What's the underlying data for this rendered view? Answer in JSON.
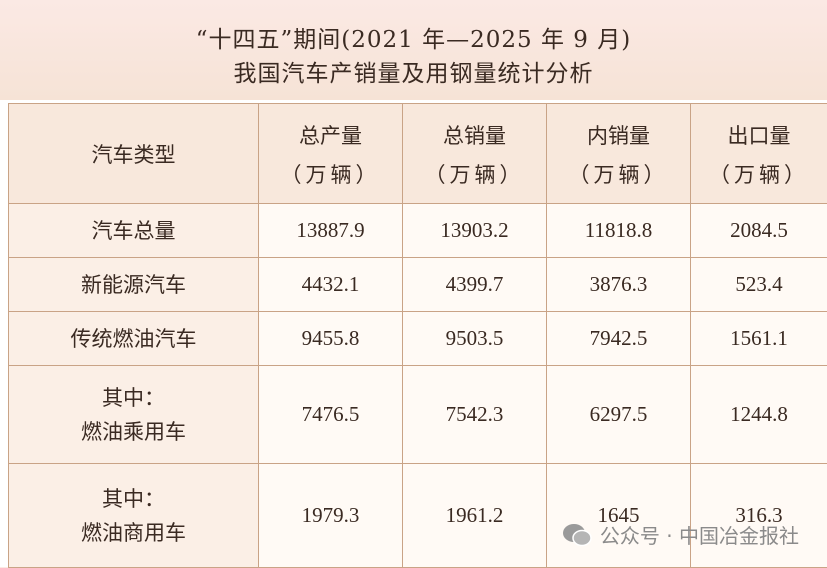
{
  "title": {
    "line1": "“十四五”期间(2021 年—2025 年 9 月)",
    "line2": "我国汽车产销量及用钢量统计分析"
  },
  "table": {
    "corner": "汽车类型",
    "columns": [
      {
        "label": "总产量",
        "unit": "（万辆）"
      },
      {
        "label": "总销量",
        "unit": "（万辆）"
      },
      {
        "label": "内销量",
        "unit": "（万辆）"
      },
      {
        "label": "出口量",
        "unit": "（万辆）"
      }
    ],
    "rows": [
      {
        "label": [
          "汽车总量"
        ],
        "values": [
          13887.9,
          13903.2,
          11818.8,
          2084.5
        ]
      },
      {
        "label": [
          "新能源汽车"
        ],
        "values": [
          4432.1,
          4399.7,
          3876.3,
          523.4
        ]
      },
      {
        "label": [
          "传统燃油汽车"
        ],
        "values": [
          9455.8,
          9503.5,
          7942.5,
          1561.1
        ]
      },
      {
        "label": [
          "其中：",
          "燃油乘用车"
        ],
        "values": [
          7476.5,
          7542.3,
          6297.5,
          1244.8
        ]
      },
      {
        "label": [
          "其中：",
          "燃油商用车"
        ],
        "values": [
          1979.3,
          1961.2,
          1645,
          316.3
        ]
      }
    ]
  },
  "watermark": "公众号 · 中国冶金报社"
}
